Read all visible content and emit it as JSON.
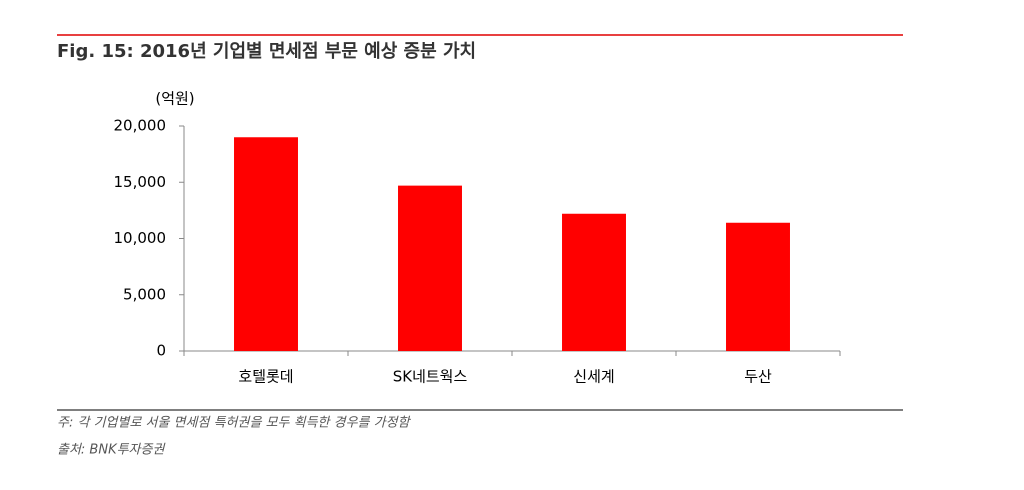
{
  "chart_data": {
    "type": "bar",
    "title": "Fig. 15: 2016년 기업별 면세점 부문 예상 증분 가치",
    "y_unit": "(억원)",
    "categories": [
      "호텔롯데",
      "SK네트웍스",
      "신세계",
      "두산"
    ],
    "values": [
      19000,
      14700,
      12200,
      11400
    ],
    "color": "#ff0000",
    "ylim": [
      0,
      20000
    ],
    "yticks": [
      0,
      {
        "value": 5000,
        "label": "5,000"
      },
      {
        "value": 10000,
        "label": "10,000"
      },
      {
        "value": 15000,
        "label": "15,000"
      },
      {
        "value": 20000,
        "label": "20,000"
      }
    ],
    "grid": false,
    "note": "주: 각 기업별로 서울 면세점 특허권을 모두 획득한 경우를 가정함",
    "source": "출처: BNK투자증권"
  }
}
